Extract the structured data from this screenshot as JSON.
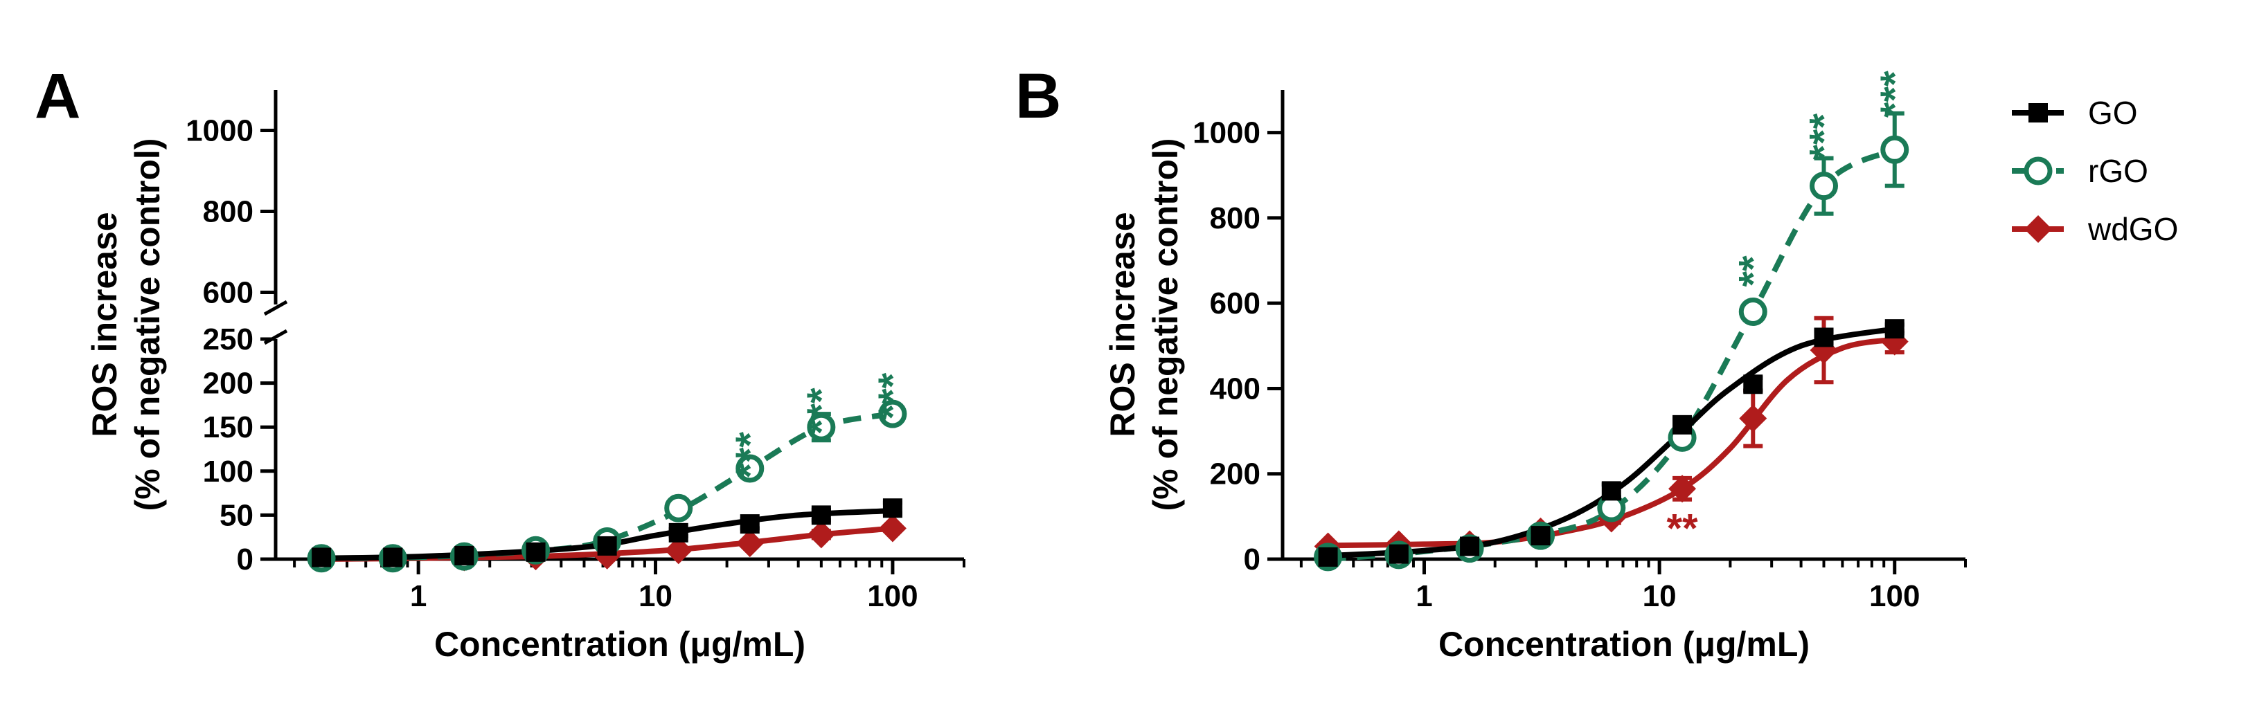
{
  "legend": [
    {
      "label": "GO",
      "color": "#000000",
      "marker": "square",
      "dash": false
    },
    {
      "label": "rGO",
      "color": "#1a7a56",
      "marker": "circle-open",
      "dash": true
    },
    {
      "label": "wdGO",
      "color": "#b01c1c",
      "marker": "diamond",
      "dash": false
    }
  ],
  "chart_data": [
    {
      "panel": "A",
      "type": "line",
      "xscale": "log",
      "xlabel": "Concentration (μg/mL)",
      "ylabel": [
        "ROS increase",
        "(% of negative control)"
      ],
      "xlim": [
        0.25,
        200
      ],
      "xticks": [
        1,
        10,
        100
      ],
      "xtick_labels": [
        "1",
        "10",
        "100"
      ],
      "broken_y_axis": true,
      "y_segments": [
        {
          "range": [
            0,
            250
          ],
          "ticks": [
            0,
            50,
            100,
            150,
            200,
            250
          ],
          "tick_labels": [
            "0",
            "50",
            "100",
            "150",
            "200",
            "250"
          ]
        },
        {
          "range": [
            570,
            1100
          ],
          "ticks": [
            600,
            800,
            1000
          ],
          "tick_labels": [
            "600",
            "800",
            "1000"
          ]
        }
      ],
      "x": [
        0.39,
        0.78,
        1.56,
        3.125,
        6.25,
        12.5,
        25,
        50,
        100
      ],
      "series": [
        {
          "name": "GO",
          "values": [
            2,
            2,
            4,
            8,
            15,
            30,
            40,
            50,
            58
          ],
          "errors": [
            1,
            1,
            1,
            2,
            3,
            4,
            5,
            6,
            6
          ],
          "fit": [
            [
              0.39,
              1
            ],
            [
              1,
              3
            ],
            [
              3,
              9
            ],
            [
              6,
              16
            ],
            [
              10,
              27
            ],
            [
              20,
              40
            ],
            [
              40,
              50
            ],
            [
              100,
              55
            ]
          ]
        },
        {
          "name": "rGO",
          "values": [
            1,
            1,
            3,
            10,
            20,
            58,
            103,
            150,
            165
          ],
          "errors": [
            1,
            1,
            1,
            2,
            3,
            5,
            6,
            15,
            4
          ],
          "fit": [
            [
              0.39,
              1
            ],
            [
              1,
              2
            ],
            [
              3,
              9
            ],
            [
              6,
              20
            ],
            [
              12.5,
              55
            ],
            [
              25,
              103
            ],
            [
              50,
              150
            ],
            [
              100,
              165
            ]
          ]
        },
        {
          "name": "wdGO",
          "values": [
            1,
            1,
            2,
            3,
            4,
            10,
            18,
            28,
            35
          ],
          "errors": [
            1,
            1,
            1,
            1,
            1,
            2,
            3,
            4,
            3
          ],
          "fit": [
            [
              0.39,
              0
            ],
            [
              1,
              1
            ],
            [
              3,
              3
            ],
            [
              6,
              6
            ],
            [
              12.5,
              11
            ],
            [
              25,
              19
            ],
            [
              50,
              28
            ],
            [
              100,
              35
            ]
          ]
        }
      ],
      "annotations": [
        {
          "text": "***",
          "x": 25,
          "y": 118,
          "series": "rGO"
        },
        {
          "text": "***",
          "x": 50,
          "y": 168,
          "series": "rGO"
        },
        {
          "text": "***",
          "x": 100,
          "y": 185,
          "series": "rGO"
        }
      ]
    },
    {
      "panel": "B",
      "type": "line",
      "xscale": "log",
      "xlabel": "Concentration (μg/mL)",
      "ylabel": [
        "ROS increase",
        "(% of negative control)"
      ],
      "xlim": [
        0.25,
        200
      ],
      "xticks": [
        1,
        10,
        100
      ],
      "xtick_labels": [
        "1",
        "10",
        "100"
      ],
      "ylim": [
        0,
        1100
      ],
      "yticks": [
        0,
        200,
        400,
        600,
        800,
        1000
      ],
      "ytick_labels": [
        "0",
        "200",
        "400",
        "600",
        "800",
        "1000"
      ],
      "x": [
        0.39,
        0.78,
        1.56,
        3.125,
        6.25,
        12.5,
        25,
        50,
        100
      ],
      "series": [
        {
          "name": "GO",
          "values": [
            5,
            12,
            30,
            55,
            160,
            315,
            410,
            520,
            540
          ],
          "errors": [
            5,
            5,
            5,
            8,
            15,
            15,
            15,
            15,
            10
          ],
          "fit": [
            [
              0.39,
              8
            ],
            [
              1,
              20
            ],
            [
              2,
              40
            ],
            [
              4,
              95
            ],
            [
              7,
              175
            ],
            [
              12,
              290
            ],
            [
              20,
              400
            ],
            [
              40,
              500
            ],
            [
              100,
              540
            ]
          ]
        },
        {
          "name": "rGO",
          "values": [
            5,
            10,
            25,
            55,
            120,
            285,
            580,
            875,
            960
          ],
          "errors": [
            3,
            3,
            5,
            8,
            10,
            15,
            15,
            65,
            85
          ],
          "fit": [
            [
              0.39,
              0
            ],
            [
              1,
              18
            ],
            [
              3,
              55
            ],
            [
              6.25,
              115
            ],
            [
              12.5,
              285
            ],
            [
              25,
              580
            ],
            [
              50,
              875
            ],
            [
              100,
              960
            ]
          ]
        },
        {
          "name": "wdGO",
          "values": [
            30,
            35,
            35,
            65,
            95,
            165,
            330,
            490,
            510
          ],
          "errors": [
            5,
            5,
            5,
            8,
            10,
            25,
            65,
            75,
            25
          ],
          "fit": [
            [
              0.39,
              32
            ],
            [
              1,
              35
            ],
            [
              2,
              40
            ],
            [
              4,
              65
            ],
            [
              7,
              100
            ],
            [
              12.5,
              165
            ],
            [
              20,
              260
            ],
            [
              35,
              420
            ],
            [
              60,
              495
            ],
            [
              100,
              515
            ]
          ]
        }
      ],
      "annotations": [
        {
          "text": "***",
          "x": 50,
          "y": 990,
          "series": "rGO"
        },
        {
          "text": "***",
          "x": 100,
          "y": 1090,
          "series": "rGO"
        },
        {
          "text": "**",
          "x": 25,
          "y": 675,
          "series": "rGO"
        },
        {
          "text": "**",
          "x": 12.5,
          "y": 40,
          "series": "wdGO"
        }
      ]
    }
  ]
}
